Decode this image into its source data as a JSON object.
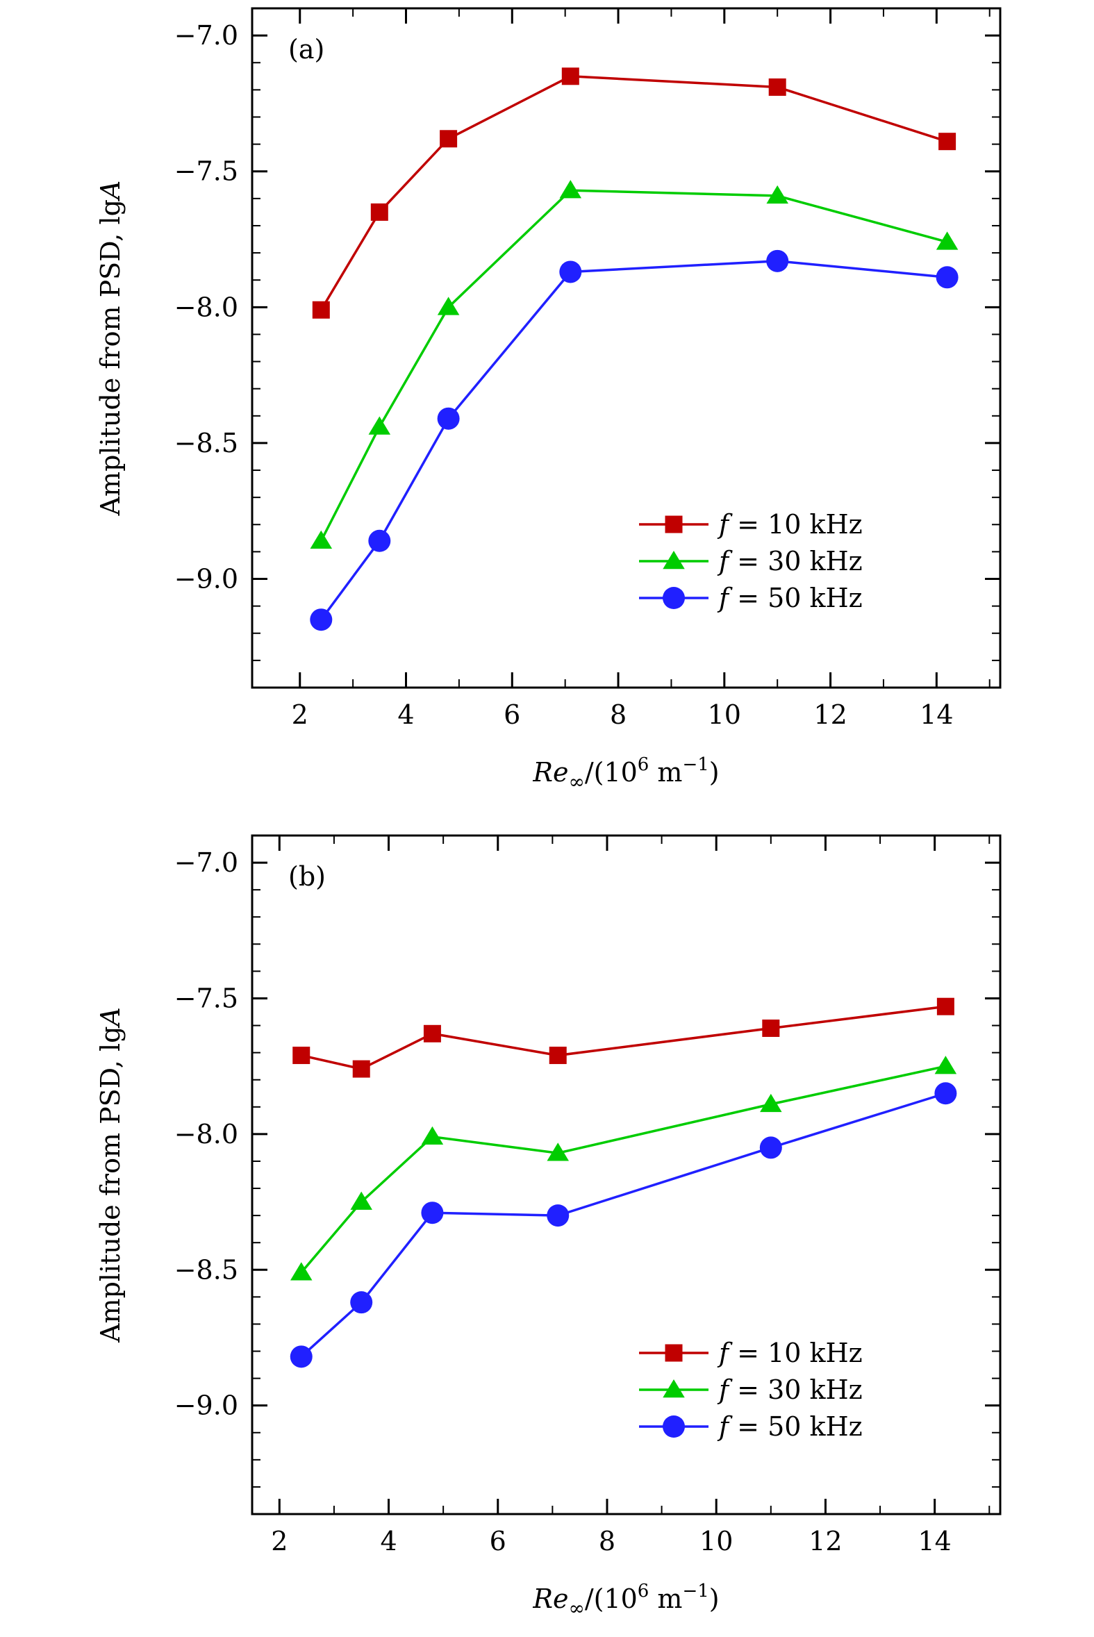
{
  "chart_data": [
    {
      "type": "line",
      "panel_label": "(a)",
      "xlabel": {
        "main": "Re",
        "sub": "∞",
        "rest": "/(10",
        "sup1": "6",
        "unit": " m",
        "sup2": "−1",
        "close": ")"
      },
      "ylabel": {
        "prefix": "Amplitude from PSD, lg",
        "italic": "A"
      },
      "xlim": [
        1.1,
        15.2
      ],
      "ylim": [
        -9.4,
        -6.9
      ],
      "xticks": [
        "2",
        "4",
        "6",
        "8",
        "10",
        "12",
        "14"
      ],
      "yticks": [
        "−7.0",
        "−7.5",
        "−8.0",
        "−8.5",
        "−9.0"
      ],
      "legend_position": "bottom-right",
      "series": [
        {
          "name": "f = 10 kHz",
          "legend_f": "f",
          "legend_rest": " = 10 kHz",
          "color": "#c00000",
          "marker": "square",
          "x": [
            2.4,
            3.5,
            4.8,
            7.1,
            11.0,
            14.2
          ],
          "y": [
            -8.01,
            -7.65,
            -7.38,
            -7.15,
            -7.19,
            -7.39
          ]
        },
        {
          "name": "f = 30 kHz",
          "legend_f": "f",
          "legend_rest": " = 30 kHz",
          "color": "#00cc00",
          "marker": "triangle",
          "x": [
            2.4,
            3.5,
            4.8,
            7.1,
            11.0,
            14.2
          ],
          "y": [
            -8.86,
            -8.44,
            -8.0,
            -7.57,
            -7.59,
            -7.76
          ]
        },
        {
          "name": "f = 50 kHz",
          "legend_f": "f",
          "legend_rest": " = 50 kHz",
          "color": "#2020ff",
          "marker": "circle",
          "x": [
            2.4,
            3.5,
            4.8,
            7.1,
            11.0,
            14.2
          ],
          "y": [
            -9.15,
            -8.86,
            -8.41,
            -7.87,
            -7.83,
            -7.89
          ]
        }
      ]
    },
    {
      "type": "line",
      "panel_label": "(b)",
      "xlabel": {
        "main": "Re",
        "sub": "∞",
        "rest": "/(10",
        "sup1": "6",
        "unit": " m",
        "sup2": "−1",
        "close": ")"
      },
      "ylabel": {
        "prefix": "Amplitude from PSD, lg",
        "italic": "A"
      },
      "xlim": [
        1.5,
        15.2
      ],
      "ylim": [
        -9.4,
        -6.9
      ],
      "xticks": [
        "2",
        "4",
        "6",
        "8",
        "10",
        "12",
        "14"
      ],
      "yticks": [
        "−7.0",
        "−7.5",
        "−8.0",
        "−8.5",
        "−9.0"
      ],
      "legend_position": "bottom-right",
      "series": [
        {
          "name": "f = 10 kHz",
          "legend_f": "f",
          "legend_rest": " = 10 kHz",
          "color": "#c00000",
          "marker": "square",
          "x": [
            2.4,
            3.5,
            4.8,
            7.1,
            11.0,
            14.2
          ],
          "y": [
            -7.71,
            -7.76,
            -7.63,
            -7.71,
            -7.61,
            -7.53
          ]
        },
        {
          "name": "f = 30 kHz",
          "legend_f": "f",
          "legend_rest": " = 30 kHz",
          "color": "#00cc00",
          "marker": "triangle",
          "x": [
            2.4,
            3.5,
            4.8,
            7.1,
            11.0,
            14.2
          ],
          "y": [
            -8.51,
            -8.25,
            -8.01,
            -8.07,
            -7.89,
            -7.75
          ]
        },
        {
          "name": "f = 50 kHz",
          "legend_f": "f",
          "legend_rest": " = 50 kHz",
          "color": "#2020ff",
          "marker": "circle",
          "x": [
            2.4,
            3.5,
            4.8,
            7.1,
            11.0,
            14.2
          ],
          "y": [
            -8.82,
            -8.62,
            -8.29,
            -8.3,
            -8.05,
            -7.85
          ]
        }
      ]
    }
  ]
}
